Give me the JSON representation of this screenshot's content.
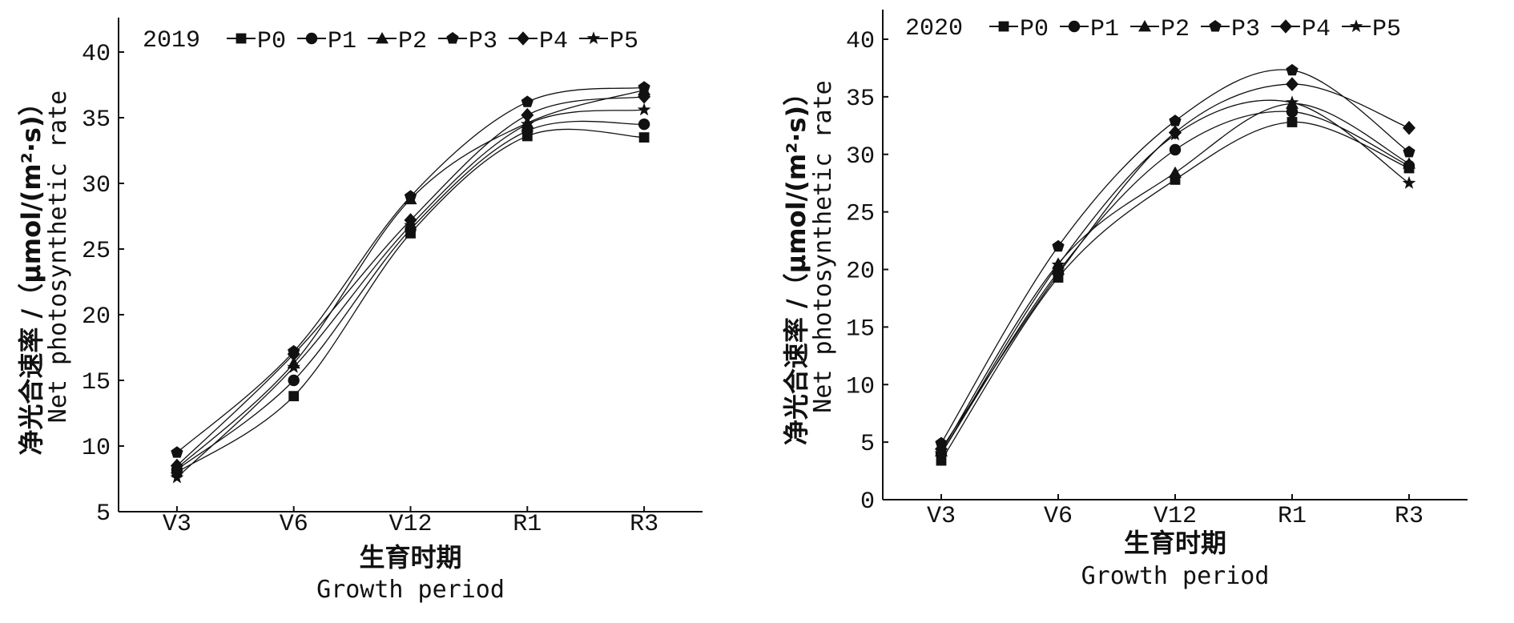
{
  "chart_data": [
    {
      "type": "line",
      "title": "2019",
      "categories": [
        "V3",
        "V6",
        "V12",
        "R1",
        "R3"
      ],
      "xlabel_cn": "生育时期",
      "xlabel": "Growth period",
      "ylabel_cn": "净光合速率 /（μmol/(m²·s)）",
      "ylabel": "Net photosynthetic rate",
      "ylim": [
        5,
        42
      ],
      "yticks": [
        5,
        10,
        15,
        20,
        25,
        30,
        35,
        40
      ],
      "legend_position": "top",
      "series": [
        {
          "name": "P0",
          "marker": "square",
          "values": [
            8.0,
            13.8,
            26.2,
            33.6,
            33.5
          ]
        },
        {
          "name": "P1",
          "marker": "circle",
          "values": [
            8.2,
            15.0,
            26.5,
            34.0,
            34.5
          ]
        },
        {
          "name": "P2",
          "marker": "triangle",
          "values": [
            8.3,
            16.3,
            28.8,
            34.6,
            37.1
          ]
        },
        {
          "name": "P3",
          "marker": "pentagon",
          "values": [
            9.5,
            17.2,
            29.0,
            36.2,
            37.3
          ]
        },
        {
          "name": "P4",
          "marker": "diamond",
          "values": [
            8.5,
            17.0,
            27.2,
            35.2,
            36.6
          ]
        },
        {
          "name": "P5",
          "marker": "star",
          "values": [
            7.6,
            16.0,
            26.8,
            34.5,
            35.6
          ]
        }
      ]
    },
    {
      "type": "line",
      "title": "2020",
      "categories": [
        "V3",
        "V6",
        "V12",
        "R1",
        "R3"
      ],
      "xlabel_cn": "生育时期",
      "xlabel": "Growth period",
      "ylabel_cn": "净光合速率 /（μmol/(m²·s)）",
      "ylabel": "Net photosynthetic rate",
      "ylim": [
        0,
        42
      ],
      "yticks": [
        0,
        5,
        10,
        15,
        20,
        25,
        30,
        35,
        40
      ],
      "legend_position": "top",
      "series": [
        {
          "name": "P0",
          "marker": "square",
          "values": [
            3.4,
            19.3,
            27.8,
            32.8,
            28.8
          ]
        },
        {
          "name": "P1",
          "marker": "circle",
          "values": [
            4.0,
            19.8,
            30.4,
            33.7,
            29.0
          ]
        },
        {
          "name": "P2",
          "marker": "triangle",
          "values": [
            4.2,
            20.5,
            28.4,
            34.4,
            29.2
          ]
        },
        {
          "name": "P3",
          "marker": "pentagon",
          "values": [
            4.9,
            22.0,
            32.9,
            37.3,
            30.2
          ]
        },
        {
          "name": "P4",
          "marker": "diamond",
          "values": [
            4.4,
            19.6,
            31.9,
            36.1,
            32.3
          ]
        },
        {
          "name": "P5",
          "marker": "star",
          "values": [
            4.0,
            20.4,
            31.7,
            34.5,
            27.5
          ]
        }
      ]
    }
  ]
}
